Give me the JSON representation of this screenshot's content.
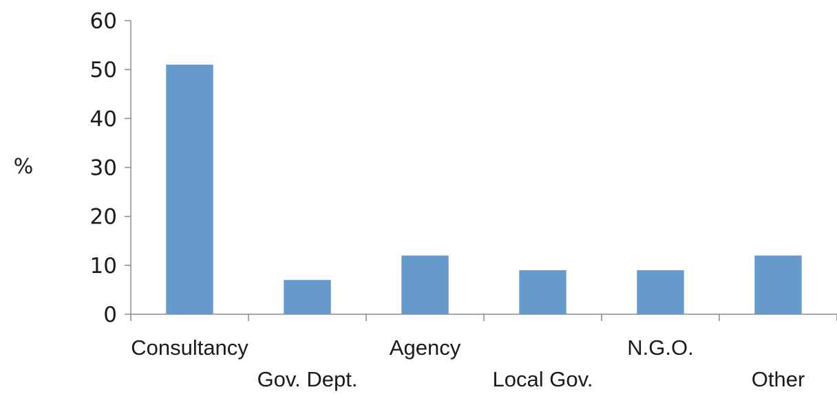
{
  "chart_data": {
    "type": "bar",
    "title": "",
    "xlabel": "",
    "ylabel": "%",
    "categories": [
      "Consultancy",
      "Gov. Dept.",
      "Agency",
      "Local Gov.",
      "N.G.O.",
      "Other"
    ],
    "values": [
      51,
      7,
      12,
      9,
      9,
      12
    ],
    "ylim": [
      0,
      60
    ],
    "yticks": [
      "0",
      "10",
      "20",
      "30",
      "40",
      "50",
      "60"
    ],
    "grid": false,
    "legend": "none",
    "bar_color": "#6699cc"
  }
}
